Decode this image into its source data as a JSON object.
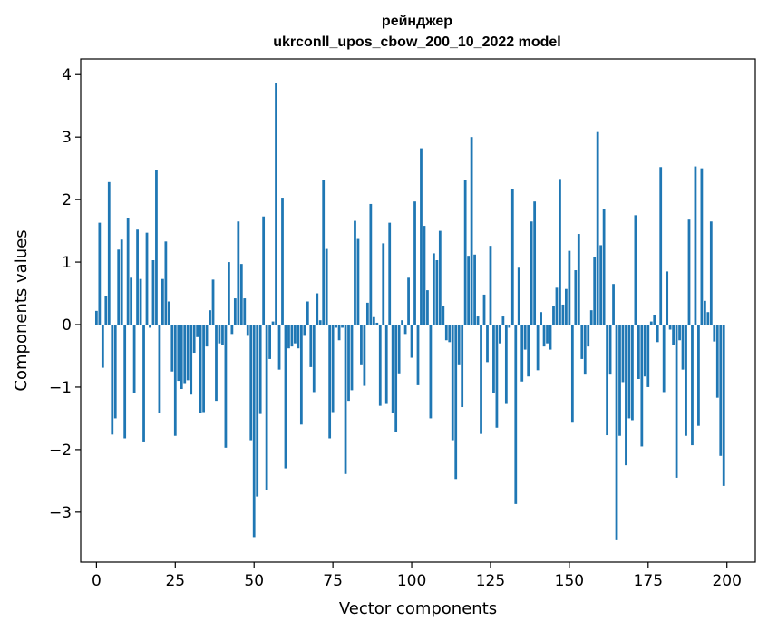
{
  "chart_data": {
    "type": "bar",
    "title": "рейнджер",
    "subtitle": "ukrconll_upos_cbow_200_10_2022 model",
    "xlabel": "Vector components",
    "ylabel": "Components values",
    "xlim": [
      -5,
      209
    ],
    "ylim": [
      -3.8,
      4.25
    ],
    "xticks": [
      0,
      25,
      50,
      75,
      100,
      125,
      150,
      175,
      200
    ],
    "yticks": [
      -3,
      -2,
      -1,
      0,
      1,
      2,
      3,
      4
    ],
    "xtick_labels": [
      "0",
      "25",
      "50",
      "75",
      "100",
      "125",
      "150",
      "175",
      "200"
    ],
    "ytick_labels": [
      "−3",
      "−2",
      "−1",
      "0",
      "1",
      "2",
      "3",
      "4"
    ],
    "grid": false,
    "bar_color": "#1f77b4",
    "values": [
      0.22,
      1.63,
      -0.69,
      0.45,
      2.28,
      -1.76,
      -1.5,
      1.2,
      1.36,
      -1.82,
      1.7,
      0.75,
      -1.1,
      1.52,
      0.73,
      -1.87,
      1.47,
      -0.05,
      1.03,
      2.47,
      -1.42,
      0.73,
      1.33,
      0.37,
      -0.75,
      -1.78,
      -0.9,
      -1.03,
      -0.95,
      -0.89,
      -1.12,
      -0.45,
      -0.2,
      -1.42,
      -1.4,
      -0.35,
      0.23,
      0.72,
      -1.22,
      -0.3,
      -0.33,
      -1.97,
      1.0,
      -0.15,
      0.42,
      1.65,
      0.97,
      0.42,
      -0.18,
      -1.85,
      -3.4,
      -2.75,
      -1.43,
      1.73,
      -2.65,
      -0.55,
      0.05,
      3.87,
      -0.72,
      2.03,
      -2.3,
      -0.38,
      -0.35,
      -0.3,
      -0.38,
      -1.6,
      -0.18,
      0.37,
      -0.68,
      -1.08,
      0.5,
      0.07,
      2.32,
      1.21,
      -1.82,
      -1.4,
      -0.05,
      -0.25,
      -0.05,
      -2.39,
      -1.22,
      -1.05,
      1.66,
      1.37,
      -0.65,
      -0.98,
      0.35,
      1.93,
      0.12,
      0.03,
      -1.3,
      1.3,
      -1.27,
      1.63,
      -1.42,
      -1.72,
      -0.78,
      0.07,
      -0.15,
      0.75,
      -0.53,
      1.97,
      -0.97,
      2.82,
      1.58,
      0.55,
      -1.5,
      1.14,
      1.03,
      1.5,
      0.3,
      -0.25,
      -0.28,
      -1.85,
      -2.47,
      -0.65,
      -1.32,
      2.32,
      1.1,
      3.0,
      1.12,
      0.13,
      -1.75,
      0.48,
      -0.6,
      1.26,
      -1.1,
      -1.65,
      -0.3,
      0.13,
      -1.27,
      -0.05,
      2.17,
      -2.87,
      0.91,
      -0.91,
      -0.4,
      -0.83,
      1.65,
      1.97,
      -0.73,
      0.2,
      -0.35,
      -0.3,
      -0.4,
      0.3,
      0.59,
      2.33,
      0.32,
      0.57,
      1.18,
      -1.57,
      0.87,
      1.45,
      -0.55,
      -0.8,
      -0.35,
      0.23,
      1.08,
      3.08,
      1.27,
      1.85,
      -1.77,
      -0.8,
      0.65,
      -3.45,
      -1.78,
      -0.92,
      -2.25,
      -1.5,
      -1.53,
      1.75,
      -0.87,
      -1.95,
      -0.83,
      -1.0,
      0.05,
      0.15,
      -0.28,
      2.52,
      -1.08,
      0.85,
      -0.08,
      -0.33,
      -2.45,
      -0.25,
      -0.72,
      -1.78,
      1.68,
      -1.93,
      2.53,
      -1.62,
      2.5,
      0.38,
      0.2,
      1.65,
      -0.27,
      -1.17,
      -2.1,
      -2.58
    ]
  }
}
